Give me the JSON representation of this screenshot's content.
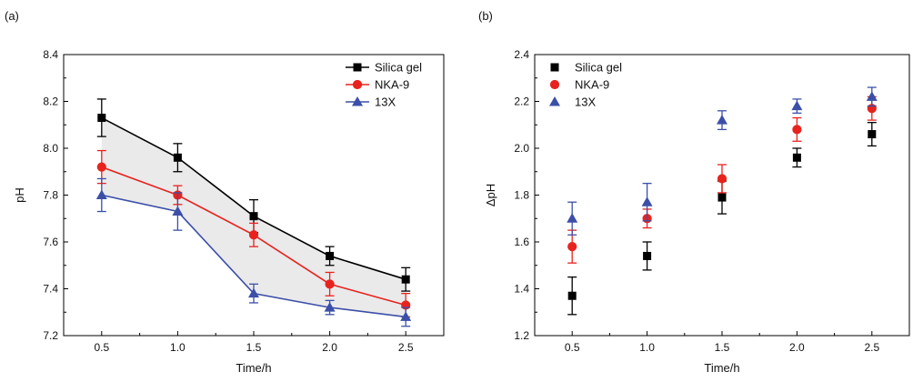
{
  "chart_data": [
    {
      "type": "line",
      "panel_label": "(a)",
      "xlabel": "Time/h",
      "ylabel": "pH",
      "x": [
        0.5,
        1.0,
        1.5,
        2.0,
        2.5
      ],
      "xticks": [
        "0.5",
        "1.0",
        "1.5",
        "2.0",
        "2.5"
      ],
      "xlim": [
        0.25,
        2.75
      ],
      "ylim": [
        7.2,
        8.4
      ],
      "yticks": [
        "7.2",
        "7.4",
        "7.6",
        "7.8",
        "8.0",
        "8.2",
        "8.4"
      ],
      "legend_position": "top-right",
      "grid": false,
      "shaded_region_between": [
        "Silica gel",
        "13X"
      ],
      "series": [
        {
          "name": "Silica gel",
          "color": "#000000",
          "marker": "square",
          "values": [
            8.13,
            7.96,
            7.71,
            7.54,
            7.44
          ],
          "errors": [
            0.08,
            0.06,
            0.07,
            0.04,
            0.05
          ]
        },
        {
          "name": "NKA-9",
          "color": "#e8231e",
          "marker": "circle",
          "values": [
            7.92,
            7.8,
            7.63,
            7.42,
            7.33
          ],
          "errors": [
            0.07,
            0.04,
            0.05,
            0.05,
            0.05
          ]
        },
        {
          "name": "13X",
          "color": "#3b4fa8",
          "marker": "triangle",
          "values": [
            7.8,
            7.73,
            7.38,
            7.32,
            7.28
          ],
          "errors": [
            0.07,
            0.08,
            0.04,
            0.03,
            0.04
          ]
        }
      ]
    },
    {
      "type": "scatter",
      "panel_label": "(b)",
      "xlabel": "Time/h",
      "ylabel": "ΔpH",
      "x": [
        0.5,
        1.0,
        1.5,
        2.0,
        2.5
      ],
      "xticks": [
        "0.5",
        "1.0",
        "1.5",
        "2.0",
        "2.5"
      ],
      "xlim": [
        0.25,
        2.75
      ],
      "ylim": [
        1.2,
        2.4
      ],
      "yticks": [
        "1.2",
        "1.4",
        "1.6",
        "1.8",
        "2.0",
        "2.2",
        "2.4"
      ],
      "legend_position": "top-left",
      "grid": false,
      "series": [
        {
          "name": "Silica gel",
          "color": "#000000",
          "marker": "square",
          "values": [
            1.37,
            1.54,
            1.79,
            1.96,
            2.06
          ],
          "errors": [
            0.08,
            0.06,
            0.07,
            0.04,
            0.05
          ]
        },
        {
          "name": "NKA-9",
          "color": "#e8231e",
          "marker": "circle",
          "values": [
            1.58,
            1.7,
            1.87,
            2.08,
            2.17
          ],
          "errors": [
            0.07,
            0.04,
            0.06,
            0.05,
            0.05
          ]
        },
        {
          "name": "13X",
          "color": "#3b4fa8",
          "marker": "triangle",
          "values": [
            1.7,
            1.77,
            2.12,
            2.18,
            2.22
          ],
          "errors": [
            0.07,
            0.08,
            0.04,
            0.03,
            0.04
          ]
        }
      ]
    }
  ]
}
